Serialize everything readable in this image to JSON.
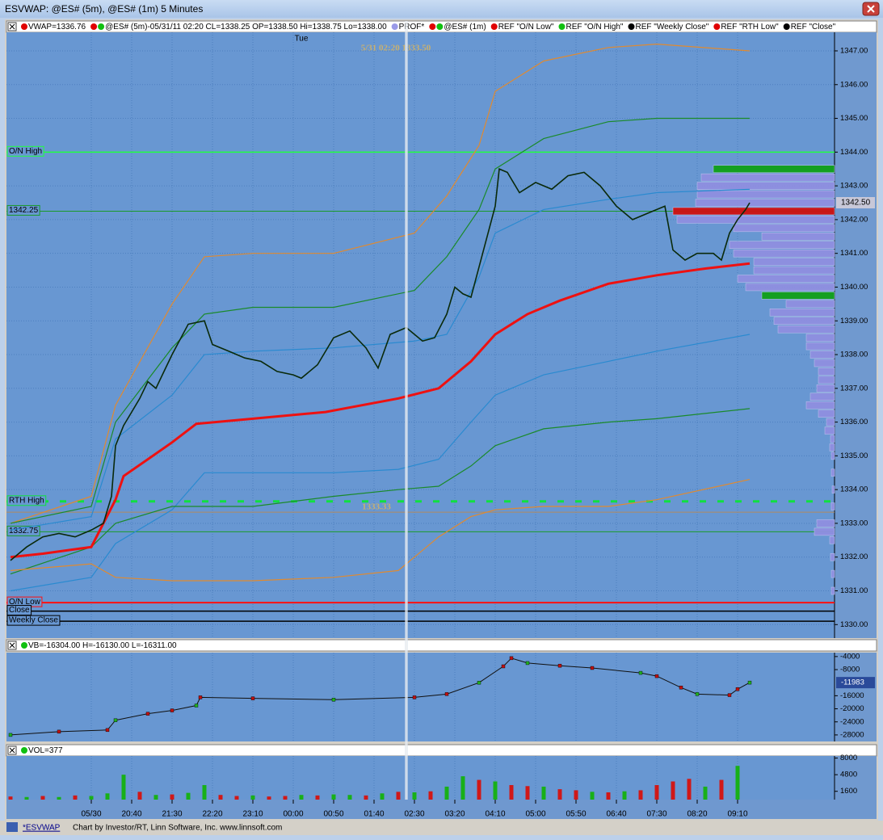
{
  "window": {
    "title": "ESVWAP: @ES# (5m), @ES# (1m) 5 Minutes",
    "tab": "*ESVWAP",
    "footer": "Chart by Investor/RT, Linn Software, Inc. www.linnsoft.com"
  },
  "chart_data": [
    {
      "type": "line",
      "header": [
        {
          "text": "VWAP=1336.76",
          "dots": [
            "#e00000"
          ]
        },
        {
          "text": "@ES# (5m)-05/31/11 02:20 CL=1338.25 OP=1338.50 Hi=1338.75 Lo=1338.00",
          "dots": [
            "#e00000",
            "#10c010"
          ]
        },
        {
          "text": "PROF*",
          "dots": [
            "#9a9ae8"
          ]
        },
        {
          "text": "@ES# (1m)",
          "dots": [
            "#e00000",
            "#10c010"
          ]
        },
        {
          "text": "REF \"O/N Low\"",
          "dots": [
            "#e00000"
          ]
        },
        {
          "text": "REF \"O/N High\"",
          "dots": [
            "#10c010"
          ]
        },
        {
          "text": "REF \"Weekly Close\"",
          "dots": [
            "#000000"
          ]
        },
        {
          "text": "REF \"RTH Low\"",
          "dots": [
            "#e00000"
          ]
        },
        {
          "text": "REF \"Close\"",
          "dots": [
            "#000000"
          ]
        }
      ],
      "day_label": {
        "x": 260,
        "text": "Tue"
      },
      "xlim": [
        -105,
        920
      ],
      "xticks": [
        {
          "value": 0,
          "label": "05/30"
        },
        {
          "value": 50,
          "label": "20:40"
        },
        {
          "value": 100,
          "label": "21:30"
        },
        {
          "value": 150,
          "label": "22:20"
        },
        {
          "value": 200,
          "label": "23:10"
        },
        {
          "value": 250,
          "label": "00:00"
        },
        {
          "value": 300,
          "label": "00:50"
        },
        {
          "value": 350,
          "label": "01:40"
        },
        {
          "value": 400,
          "label": "02:30"
        },
        {
          "value": 450,
          "label": "03:20"
        },
        {
          "value": 500,
          "label": "04:10"
        },
        {
          "value": 550,
          "label": "05:00"
        },
        {
          "value": 600,
          "label": "05:50"
        },
        {
          "value": 650,
          "label": "06:40"
        },
        {
          "value": 700,
          "label": "07:30"
        },
        {
          "value": 750,
          "label": "08:20"
        },
        {
          "value": 800,
          "label": "09:10"
        }
      ],
      "ylim": [
        1329.6,
        1347.55
      ],
      "yticks": [
        {
          "value": 1330,
          "label": "1330.00"
        },
        {
          "value": 1331,
          "label": "1331.00"
        },
        {
          "value": 1332,
          "label": "1332.00"
        },
        {
          "value": 1333,
          "label": "1333.00"
        },
        {
          "value": 1334,
          "label": "1334.00"
        },
        {
          "value": 1335,
          "label": "1335.00"
        },
        {
          "value": 1336,
          "label": "1336.00"
        },
        {
          "value": 1337,
          "label": "1337.00"
        },
        {
          "value": 1338,
          "label": "1338.00"
        },
        {
          "value": 1339,
          "label": "1339.00"
        },
        {
          "value": 1340,
          "label": "1340.00"
        },
        {
          "value": 1341,
          "label": "1341.00"
        },
        {
          "value": 1342,
          "label": "1342.00"
        },
        {
          "value": 1343,
          "label": "1343.00"
        },
        {
          "value": 1344,
          "label": "1344.00"
        },
        {
          "value": 1345,
          "label": "1345.00"
        },
        {
          "value": 1346,
          "label": "1346.00"
        },
        {
          "value": 1347,
          "label": "1347.00"
        }
      ],
      "grid": true,
      "series": [
        {
          "color": "#e08a30",
          "width": 1.2,
          "x": [
            -100,
            0,
            30,
            100,
            140,
            200,
            300,
            400,
            440,
            480,
            500,
            560,
            640,
            700,
            815
          ],
          "values": [
            1333.0,
            1333.8,
            1336.5,
            1339.5,
            1340.9,
            1341.0,
            1341.0,
            1341.6,
            1342.7,
            1344.2,
            1345.8,
            1346.7,
            1347.1,
            1347.2,
            1347.0
          ]
        },
        {
          "color": "#1a8a2a",
          "width": 1.2,
          "x": [
            -100,
            0,
            30,
            100,
            140,
            200,
            300,
            400,
            440,
            480,
            500,
            560,
            640,
            700,
            815
          ],
          "values": [
            1333.0,
            1333.5,
            1336.0,
            1338.2,
            1339.2,
            1339.4,
            1339.4,
            1339.9,
            1340.9,
            1342.3,
            1343.5,
            1344.4,
            1344.9,
            1345.0,
            1345.0
          ]
        },
        {
          "color": "#2a8ad0",
          "width": 1.2,
          "x": [
            -100,
            0,
            30,
            100,
            140,
            200,
            300,
            400,
            440,
            480,
            500,
            560,
            640,
            700,
            815
          ],
          "values": [
            1332.8,
            1333.2,
            1335.5,
            1336.8,
            1338.0,
            1338.1,
            1338.2,
            1338.4,
            1338.6,
            1340.3,
            1341.6,
            1342.3,
            1342.6,
            1342.8,
            1342.9
          ]
        },
        {
          "color": "#2a8ad0",
          "width": 1.2,
          "x": [
            -100,
            0,
            30,
            100,
            140,
            200,
            300,
            380,
            430,
            470,
            500,
            560,
            640,
            700,
            815
          ],
          "values": [
            1331.0,
            1331.4,
            1332.4,
            1333.4,
            1334.5,
            1334.5,
            1334.5,
            1334.6,
            1334.9,
            1336.0,
            1336.8,
            1337.4,
            1337.8,
            1338.1,
            1338.6
          ]
        },
        {
          "color": "#1a8a2a",
          "width": 1.2,
          "x": [
            -100,
            0,
            30,
            100,
            140,
            200,
            300,
            380,
            430,
            470,
            500,
            560,
            640,
            700,
            815
          ],
          "values": [
            1331.5,
            1332.3,
            1333.0,
            1333.5,
            1333.5,
            1333.5,
            1333.8,
            1334.0,
            1334.1,
            1334.7,
            1335.3,
            1335.8,
            1336.0,
            1336.1,
            1336.4
          ]
        },
        {
          "color": "#e08a30",
          "width": 1.2,
          "x": [
            -100,
            0,
            30,
            100,
            140,
            200,
            300,
            380,
            430,
            470,
            500,
            560,
            640,
            700,
            815
          ],
          "values": [
            1331.6,
            1331.8,
            1331.4,
            1331.3,
            1331.3,
            1331.3,
            1331.4,
            1331.6,
            1332.6,
            1333.2,
            1333.4,
            1333.5,
            1333.5,
            1333.7,
            1334.3
          ]
        },
        {
          "color": "#ee1111",
          "width": 3,
          "x": [
            -100,
            -60,
            0,
            30,
            40,
            70,
            100,
            130,
            200,
            290,
            380,
            430,
            470,
            500,
            540,
            580,
            640,
            700,
            760,
            815
          ],
          "values": [
            1332.0,
            1332.1,
            1332.3,
            1333.7,
            1334.4,
            1334.9,
            1335.4,
            1335.95,
            1336.1,
            1336.3,
            1336.7,
            1337.0,
            1337.8,
            1338.6,
            1339.2,
            1339.6,
            1340.1,
            1340.35,
            1340.55,
            1340.7
          ]
        },
        {
          "color": "#0a2a0a",
          "width": 1.6,
          "x": [
            -100,
            -80,
            -60,
            -40,
            -20,
            0,
            15,
            25,
            30,
            40,
            50,
            60,
            70,
            80,
            90,
            100,
            120,
            140,
            150,
            170,
            190,
            210,
            230,
            250,
            260,
            280,
            300,
            320,
            340,
            355,
            370,
            390,
            410,
            425,
            440,
            450,
            460,
            470,
            480,
            490,
            500,
            505,
            515,
            530,
            550,
            570,
            590,
            610,
            630,
            650,
            670,
            690,
            710,
            720,
            735,
            750,
            770,
            780,
            790,
            800,
            810,
            815
          ],
          "values": [
            1331.9,
            1332.3,
            1332.6,
            1332.7,
            1332.6,
            1332.8,
            1333.0,
            1333.8,
            1335.3,
            1335.9,
            1336.3,
            1336.7,
            1337.2,
            1337.0,
            1337.5,
            1338.0,
            1338.9,
            1339.0,
            1338.3,
            1338.1,
            1337.9,
            1337.8,
            1337.5,
            1337.4,
            1337.3,
            1337.7,
            1338.5,
            1338.7,
            1338.2,
            1337.6,
            1338.6,
            1338.8,
            1338.4,
            1338.5,
            1339.2,
            1340.0,
            1339.8,
            1339.7,
            1340.6,
            1341.5,
            1342.4,
            1343.5,
            1343.4,
            1342.8,
            1343.1,
            1342.9,
            1343.3,
            1343.4,
            1343.0,
            1342.4,
            1342.0,
            1342.2,
            1342.4,
            1341.1,
            1340.8,
            1341.0,
            1341.0,
            1340.8,
            1341.6,
            1342.0,
            1342.3,
            1342.5
          ]
        }
      ],
      "reference_lines": [
        {
          "label": "O/N High",
          "value": 1344.0,
          "color": "#20ff40",
          "width": 1.5
        },
        {
          "label": "1342.25",
          "value": 1342.25,
          "color": "#1a9a2a",
          "width": 1
        },
        {
          "label": "RTH High",
          "value": 1333.65,
          "color": "#10e040",
          "width": 3,
          "dash": "8,14"
        },
        {
          "label": "1332.75",
          "value": 1332.75,
          "color": "#1a9a2a",
          "width": 1
        },
        {
          "label": "O/N Low",
          "value": 1330.65,
          "color": "#ff1010",
          "width": 2
        },
        {
          "label": "Close",
          "value": 1330.4,
          "color": "#000000",
          "width": 1.5
        },
        {
          "label": "Weekly Close",
          "value": 1330.1,
          "color": "#000000",
          "width": 1.5
        }
      ],
      "crosshair": {
        "x": 390,
        "y": 1333.33,
        "label": "5/31 02:20 1333.50",
        "y_label": "1333.33"
      },
      "last": {
        "value": 1342.5,
        "label": "1342.50"
      },
      "profile": {
        "color": "#8f8fe0",
        "value_area_color": "#10a018",
        "value_area_edges": [
          1343.5,
          1339.75
        ],
        "poc": 1342.25,
        "poc_color": "#d01010",
        "levels": [
          1343.5,
          1343.25,
          1343,
          1342.75,
          1342.5,
          1342.25,
          1342,
          1341.75,
          1341.5,
          1341.25,
          1341,
          1340.75,
          1340.5,
          1340.25,
          1340,
          1339.75,
          1339.5,
          1339.25,
          1339,
          1338.75,
          1338.5,
          1338.25,
          1338,
          1337.75,
          1337.5,
          1337.25,
          1337,
          1336.75,
          1336.5,
          1336.25,
          1336,
          1335.75,
          1335.5,
          1335.25,
          1335,
          1334.5,
          1334,
          1333.5,
          1333,
          1332.75,
          1332.5,
          1332,
          1331.5,
          1331
        ],
        "volumes": [
          150,
          165,
          170,
          170,
          172,
          200,
          195,
          125,
          90,
          130,
          125,
          100,
          100,
          120,
          110,
          90,
          60,
          80,
          75,
          70,
          35,
          35,
          30,
          25,
          20,
          20,
          22,
          30,
          35,
          20,
          10,
          12,
          5,
          6,
          4,
          4,
          3,
          4,
          22,
          25,
          6,
          5,
          4,
          4
        ]
      }
    },
    {
      "type": "line",
      "header": [
        {
          "text": "VB=-16304.00 H=-16130.00 L=-16311.00",
          "dots": [
            "#10c010"
          ]
        }
      ],
      "xlim": [
        -105,
        920
      ],
      "ylim": [
        -30000,
        -2800
      ],
      "yticks": [
        -4000,
        -8000,
        -16000,
        -20000,
        -24000,
        -28000
      ],
      "series": [
        {
          "color": "#101010",
          "width": 1,
          "x": [
            -100,
            -40,
            20,
            30,
            70,
            100,
            130,
            135,
            200,
            300,
            400,
            440,
            480,
            510,
            520,
            540,
            580,
            620,
            680,
            700,
            730,
            750,
            790,
            800,
            815
          ],
          "values": [
            -28000,
            -27000,
            -26500,
            -23500,
            -21500,
            -20500,
            -19000,
            -16500,
            -16800,
            -17200,
            -16500,
            -15500,
            -12000,
            -7000,
            -4500,
            -6000,
            -6800,
            -7500,
            -9000,
            -10000,
            -13500,
            -15500,
            -15800,
            -14000,
            -11983
          ]
        }
      ],
      "last": {
        "value": -11983,
        "label": "-11983"
      }
    },
    {
      "type": "bar",
      "header": [
        {
          "text": "VOL=377",
          "dots": [
            "#10c010"
          ]
        }
      ],
      "xlim": [
        -105,
        920
      ],
      "ylim": [
        0,
        8400
      ],
      "yticks": [
        8000,
        4800,
        1600
      ],
      "x": [
        -100,
        -80,
        -60,
        -40,
        -20,
        0,
        20,
        40,
        60,
        80,
        100,
        120,
        140,
        160,
        180,
        200,
        220,
        240,
        260,
        280,
        300,
        320,
        340,
        360,
        380,
        400,
        420,
        440,
        460,
        480,
        500,
        520,
        540,
        560,
        580,
        600,
        620,
        640,
        660,
        680,
        700,
        720,
        740,
        760,
        780,
        800
      ],
      "values": [
        600,
        500,
        700,
        500,
        800,
        700,
        1200,
        4800,
        1500,
        900,
        1000,
        1300,
        2800,
        900,
        700,
        800,
        600,
        700,
        900,
        800,
        1000,
        900,
        800,
        1200,
        1500,
        1400,
        1600,
        2500,
        4500,
        3800,
        3500,
        2800,
        2600,
        2500,
        2000,
        1800,
        1500,
        1400,
        1600,
        1800,
        2800,
        3500,
        4000,
        2500,
        3800,
        6500
      ],
      "colors": [
        "#d01818",
        "#18b018",
        "#d01818",
        "#18b018",
        "#d01818",
        "#18b018",
        "#18b018",
        "#18b018",
        "#d01818",
        "#18b018",
        "#d01818",
        "#18b018",
        "#18b018",
        "#d01818",
        "#d01818",
        "#18b018",
        "#d01818",
        "#d01818",
        "#18b018",
        "#d01818",
        "#18b018",
        "#18b018",
        "#d01818",
        "#18b018",
        "#d01818",
        "#18b018",
        "#d01818",
        "#18b018",
        "#18b018",
        "#d01818",
        "#18b018",
        "#d01818",
        "#d01818",
        "#18b018",
        "#d01818",
        "#d01818",
        "#18b018",
        "#d01818",
        "#18b018",
        "#d01818",
        "#d01818",
        "#d01818",
        "#d01818",
        "#18b018",
        "#d01818",
        "#18b018"
      ]
    }
  ]
}
